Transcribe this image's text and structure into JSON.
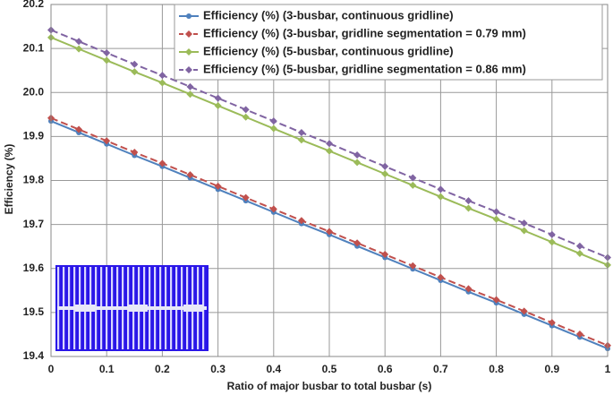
{
  "chart_data": {
    "type": "line",
    "x_label": "Ratio of major busbar to total busbar (s)",
    "y_label": "Efficiency (%)",
    "x": [
      0,
      0.05,
      0.1,
      0.15,
      0.2,
      0.25,
      0.3,
      0.35,
      0.4,
      0.45,
      0.5,
      0.55,
      0.6,
      0.65,
      0.7,
      0.75,
      0.8,
      0.85,
      0.9,
      0.95,
      1
    ],
    "xlim": [
      0,
      1
    ],
    "xticks": [
      0,
      0.1,
      0.2,
      0.3,
      0.4,
      0.5,
      0.6,
      0.7,
      0.8,
      0.9,
      1
    ],
    "ylim": [
      19.4,
      20.2
    ],
    "yticks": [
      19.4,
      19.5,
      19.6,
      19.7,
      19.8,
      19.9,
      {
        "value": 20,
        "label": "20.0"
      },
      20.1,
      20.2
    ],
    "grid": true,
    "legend": "top-right",
    "series": [
      {
        "name": "Efficiency (%) (3-busbar, continuous gridline)",
        "color": "#4f81bd",
        "marker": "circle",
        "dashed": false,
        "values": [
          19.935,
          19.909,
          19.883,
          19.857,
          19.832,
          19.806,
          19.78,
          19.754,
          19.728,
          19.702,
          19.677,
          19.651,
          19.625,
          19.599,
          19.573,
          19.547,
          19.522,
          19.496,
          19.47,
          19.444,
          19.418
        ]
      },
      {
        "name": "Efficiency (%) (3-busbar, gridline segmentation = 0.79 mm)",
        "color": "#c0504d",
        "marker": "diamond",
        "dashed": true,
        "values": [
          19.942,
          19.916,
          19.89,
          19.864,
          19.839,
          19.813,
          19.787,
          19.761,
          19.735,
          19.709,
          19.684,
          19.658,
          19.632,
          19.606,
          19.58,
          19.554,
          19.529,
          19.503,
          19.477,
          19.451,
          19.425
        ]
      },
      {
        "name": "Efficiency (%) (5-busbar, continuous gridline)",
        "color": "#9bbb59",
        "marker": "diamond",
        "dashed": false,
        "values": [
          20.125,
          20.099,
          20.073,
          20.047,
          20.022,
          19.996,
          19.97,
          19.944,
          19.918,
          19.892,
          19.867,
          19.841,
          19.815,
          19.789,
          19.763,
          19.737,
          19.712,
          19.686,
          19.66,
          19.634,
          19.608
        ]
      },
      {
        "name": "Efficiency (%) (5-busbar, gridline segmentation = 0.86 mm)",
        "color": "#8064a2",
        "marker": "diamond",
        "dashed": true,
        "values": [
          20.142,
          20.116,
          20.09,
          20.064,
          20.039,
          20.013,
          19.987,
          19.961,
          19.935,
          19.909,
          19.884,
          19.858,
          19.832,
          19.806,
          19.78,
          19.754,
          19.729,
          19.703,
          19.677,
          19.651,
          19.625
        ]
      }
    ]
  }
}
